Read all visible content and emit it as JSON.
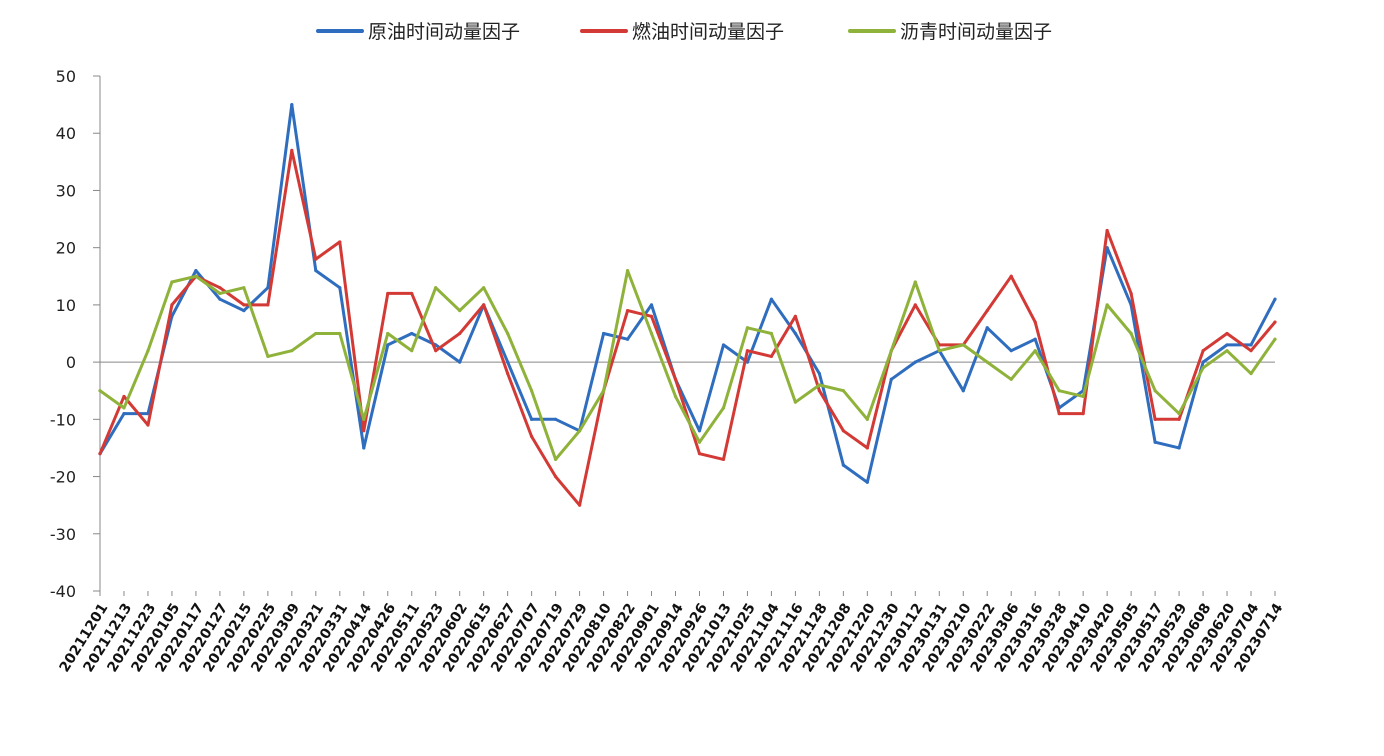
{
  "chart_data": {
    "type": "line",
    "title": "",
    "xlabel": "",
    "ylabel": "",
    "ylim": [
      -40,
      50
    ],
    "yticks": [
      50,
      40,
      30,
      20,
      10,
      0,
      -10,
      -20,
      -30,
      -40
    ],
    "grid": false,
    "legend_position": "top",
    "x": [
      "20211201",
      "20211213",
      "20211223",
      "20220105",
      "20220117",
      "20220127",
      "20220215",
      "20220225",
      "20220309",
      "20220321",
      "20220331",
      "20220414",
      "20220426",
      "20220511",
      "20220523",
      "20220602",
      "20220615",
      "20220627",
      "20220707",
      "20220719",
      "20220729",
      "20220810",
      "20220822",
      "20220901",
      "20220914",
      "20220926",
      "20221013",
      "20221025",
      "20221104",
      "20221116",
      "20221128",
      "20221208",
      "20221220",
      "20221230",
      "20230112",
      "20230131",
      "20230210",
      "20230222",
      "20230306",
      "20230316",
      "20230328",
      "20230410",
      "20230420",
      "20230505",
      "20230517",
      "20230529",
      "20230608",
      "20230620",
      "20230704",
      "20230714"
    ],
    "series": [
      {
        "name": "原油时间动量因子",
        "color": "#2f6dbf",
        "values": [
          -16,
          -9,
          -9,
          8,
          16,
          11,
          9,
          13,
          45,
          16,
          13,
          -15,
          3,
          5,
          3,
          0,
          10,
          0,
          -10,
          -10,
          -12,
          5,
          4,
          10,
          -3,
          -12,
          3,
          0,
          11,
          5,
          -2,
          -18,
          -21,
          -3,
          0,
          2,
          -5,
          6,
          2,
          4,
          -8,
          -5,
          20,
          10,
          -14,
          -15,
          0,
          3,
          3,
          11
        ]
      },
      {
        "name": "燃油时间动量因子",
        "color": "#d33a36",
        "values": [
          -16,
          -6,
          -11,
          10,
          15,
          13,
          10,
          10,
          37,
          18,
          21,
          -12,
          12,
          12,
          2,
          5,
          10,
          -2,
          -13,
          -20,
          -25,
          -5,
          9,
          8,
          -3,
          -16,
          -17,
          2,
          1,
          8,
          -5,
          -12,
          -15,
          2,
          10,
          3,
          3,
          9,
          15,
          7,
          -9,
          -9,
          23,
          12,
          -10,
          -10,
          2,
          5,
          2,
          7
        ]
      },
      {
        "name": "沥青时间动量因子",
        "color": "#8fb23a",
        "values": [
          -5,
          -8,
          2,
          14,
          15,
          12,
          13,
          1,
          2,
          5,
          5,
          -10,
          5,
          2,
          13,
          9,
          13,
          5,
          -5,
          -17,
          -12,
          -5,
          16,
          5,
          -6,
          -14,
          -8,
          6,
          5,
          -7,
          -4,
          -5,
          -10,
          2,
          14,
          2,
          3,
          0,
          -3,
          2,
          -5,
          -6,
          10,
          5,
          -5,
          -9,
          -1,
          2,
          -2,
          4
        ]
      }
    ]
  }
}
